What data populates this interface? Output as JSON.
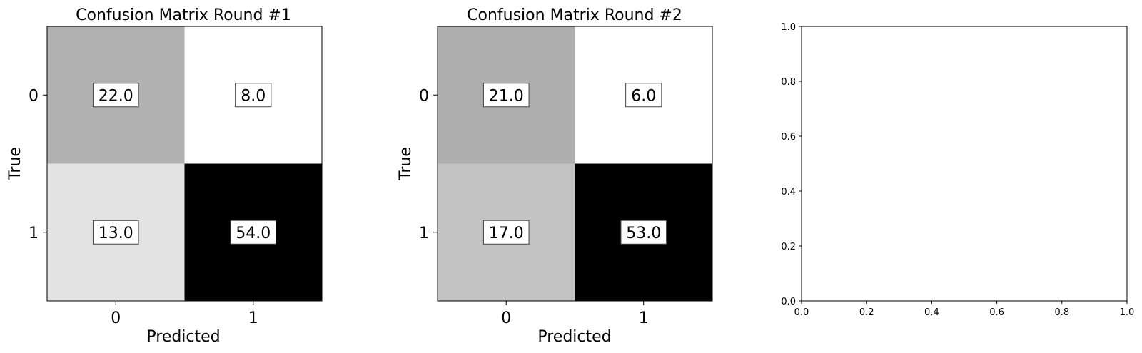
{
  "chart_data": [
    {
      "type": "heatmap",
      "title": "Confusion Matrix Round #1",
      "xlabel": "Predicted",
      "ylabel": "True",
      "x_categories": [
        "0",
        "1"
      ],
      "y_categories": [
        "0",
        "1"
      ],
      "values": [
        [
          22.0,
          8.0
        ],
        [
          13.0,
          54.0
        ]
      ],
      "colormap": "gray_r"
    },
    {
      "type": "heatmap",
      "title": "Confusion Matrix Round #2",
      "xlabel": "Predicted",
      "ylabel": "True",
      "x_categories": [
        "0",
        "1"
      ],
      "y_categories": [
        "0",
        "1"
      ],
      "values": [
        [
          21.0,
          6.0
        ],
        [
          17.0,
          53.0
        ]
      ],
      "colormap": "gray_r"
    },
    {
      "type": "scatter",
      "title": "",
      "xlabel": "",
      "ylabel": "",
      "xlim": [
        0.0,
        1.0
      ],
      "ylim": [
        0.0,
        1.0
      ],
      "x_ticks": [
        "0.0",
        "0.2",
        "0.4",
        "0.6",
        "0.8",
        "1.0"
      ],
      "y_ticks": [
        "0.0",
        "0.2",
        "0.4",
        "0.6",
        "0.8",
        "1.0"
      ],
      "series": []
    }
  ]
}
